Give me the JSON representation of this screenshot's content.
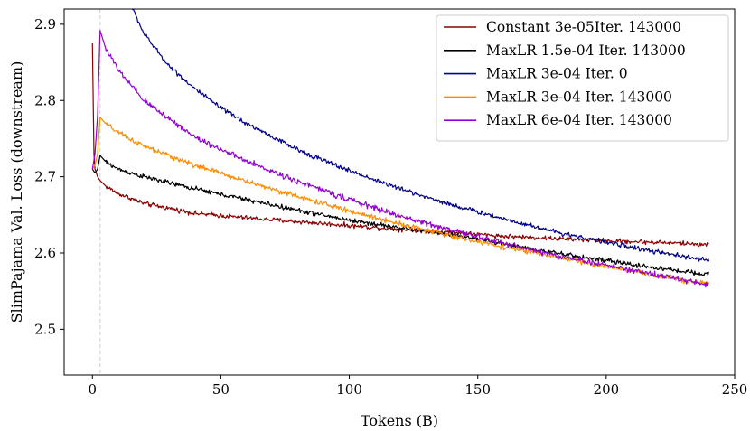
{
  "chart_data": {
    "type": "line",
    "title": "",
    "xlabel": "Tokens (B)",
    "ylabel": "SlimPajama Val. Loss (downstream)",
    "xlim": [
      -11,
      250
    ],
    "ylim": [
      2.44,
      2.92
    ],
    "xticks": [
      0,
      50,
      100,
      150,
      200,
      250
    ],
    "yticks": [
      2.5,
      2.6,
      2.7,
      2.8,
      2.9
    ],
    "xtick_labels": [
      "0",
      "50",
      "100",
      "150",
      "200",
      "250"
    ],
    "ytick_labels": [
      "2.5",
      "2.6",
      "2.7",
      "2.8",
      "2.9"
    ],
    "vline_x": 3,
    "legend_position": "top-right",
    "series": [
      {
        "name": "Constant 3e-05Iter. 143000",
        "color": "#8b0000",
        "x": [
          0,
          0.6,
          1,
          1.5,
          2,
          3,
          5,
          10,
          20,
          40,
          60,
          80,
          100,
          120,
          140,
          160,
          180,
          200,
          220,
          240
        ],
        "y": [
          2.875,
          2.73,
          2.71,
          2.705,
          2.7,
          2.695,
          2.688,
          2.678,
          2.665,
          2.652,
          2.646,
          2.641,
          2.636,
          2.631,
          2.627,
          2.622,
          2.619,
          2.616,
          2.614,
          2.611
        ],
        "noise": 0.0045
      },
      {
        "name": "MaxLR 1.5e-04 Iter. 143000",
        "color": "#000000",
        "x": [
          0,
          1,
          2,
          3,
          5,
          10,
          20,
          40,
          60,
          80,
          100,
          120,
          140,
          160,
          180,
          200,
          220,
          240
        ],
        "y": [
          2.71,
          2.705,
          2.71,
          2.728,
          2.72,
          2.71,
          2.7,
          2.684,
          2.67,
          2.656,
          2.643,
          2.633,
          2.624,
          2.612,
          2.6,
          2.59,
          2.58,
          2.572
        ],
        "noise": 0.0045
      },
      {
        "name": "MaxLR 3e-04 Iter. 0",
        "color": "#00008b",
        "x": [
          15,
          20,
          25,
          30,
          40,
          50,
          60,
          80,
          100,
          120,
          140,
          160,
          180,
          200,
          220,
          240
        ],
        "y": [
          2.925,
          2.888,
          2.866,
          2.845,
          2.815,
          2.79,
          2.77,
          2.735,
          2.708,
          2.684,
          2.663,
          2.645,
          2.628,
          2.614,
          2.601,
          2.59
        ],
        "noise": 0.0045
      },
      {
        "name": "MaxLR 3e-04 Iter. 143000",
        "color": "#ff8c00",
        "x": [
          0,
          1,
          2,
          3,
          5,
          10,
          20,
          40,
          60,
          80,
          100,
          120,
          140,
          160,
          180,
          200,
          220,
          240
        ],
        "y": [
          2.71,
          2.715,
          2.73,
          2.778,
          2.77,
          2.758,
          2.74,
          2.715,
          2.694,
          2.674,
          2.655,
          2.638,
          2.622,
          2.608,
          2.595,
          2.582,
          2.57,
          2.56
        ],
        "noise": 0.005
      },
      {
        "name": "MaxLR 6e-04 Iter. 143000",
        "color": "#9400d3",
        "x": [
          0,
          1,
          2,
          3,
          5,
          10,
          20,
          40,
          60,
          80,
          100,
          120,
          140,
          160,
          180,
          200,
          220,
          240
        ],
        "y": [
          2.71,
          2.73,
          2.78,
          2.892,
          2.87,
          2.84,
          2.8,
          2.752,
          2.72,
          2.694,
          2.67,
          2.648,
          2.63,
          2.613,
          2.597,
          2.584,
          2.571,
          2.558
        ],
        "noise": 0.0055
      }
    ]
  }
}
